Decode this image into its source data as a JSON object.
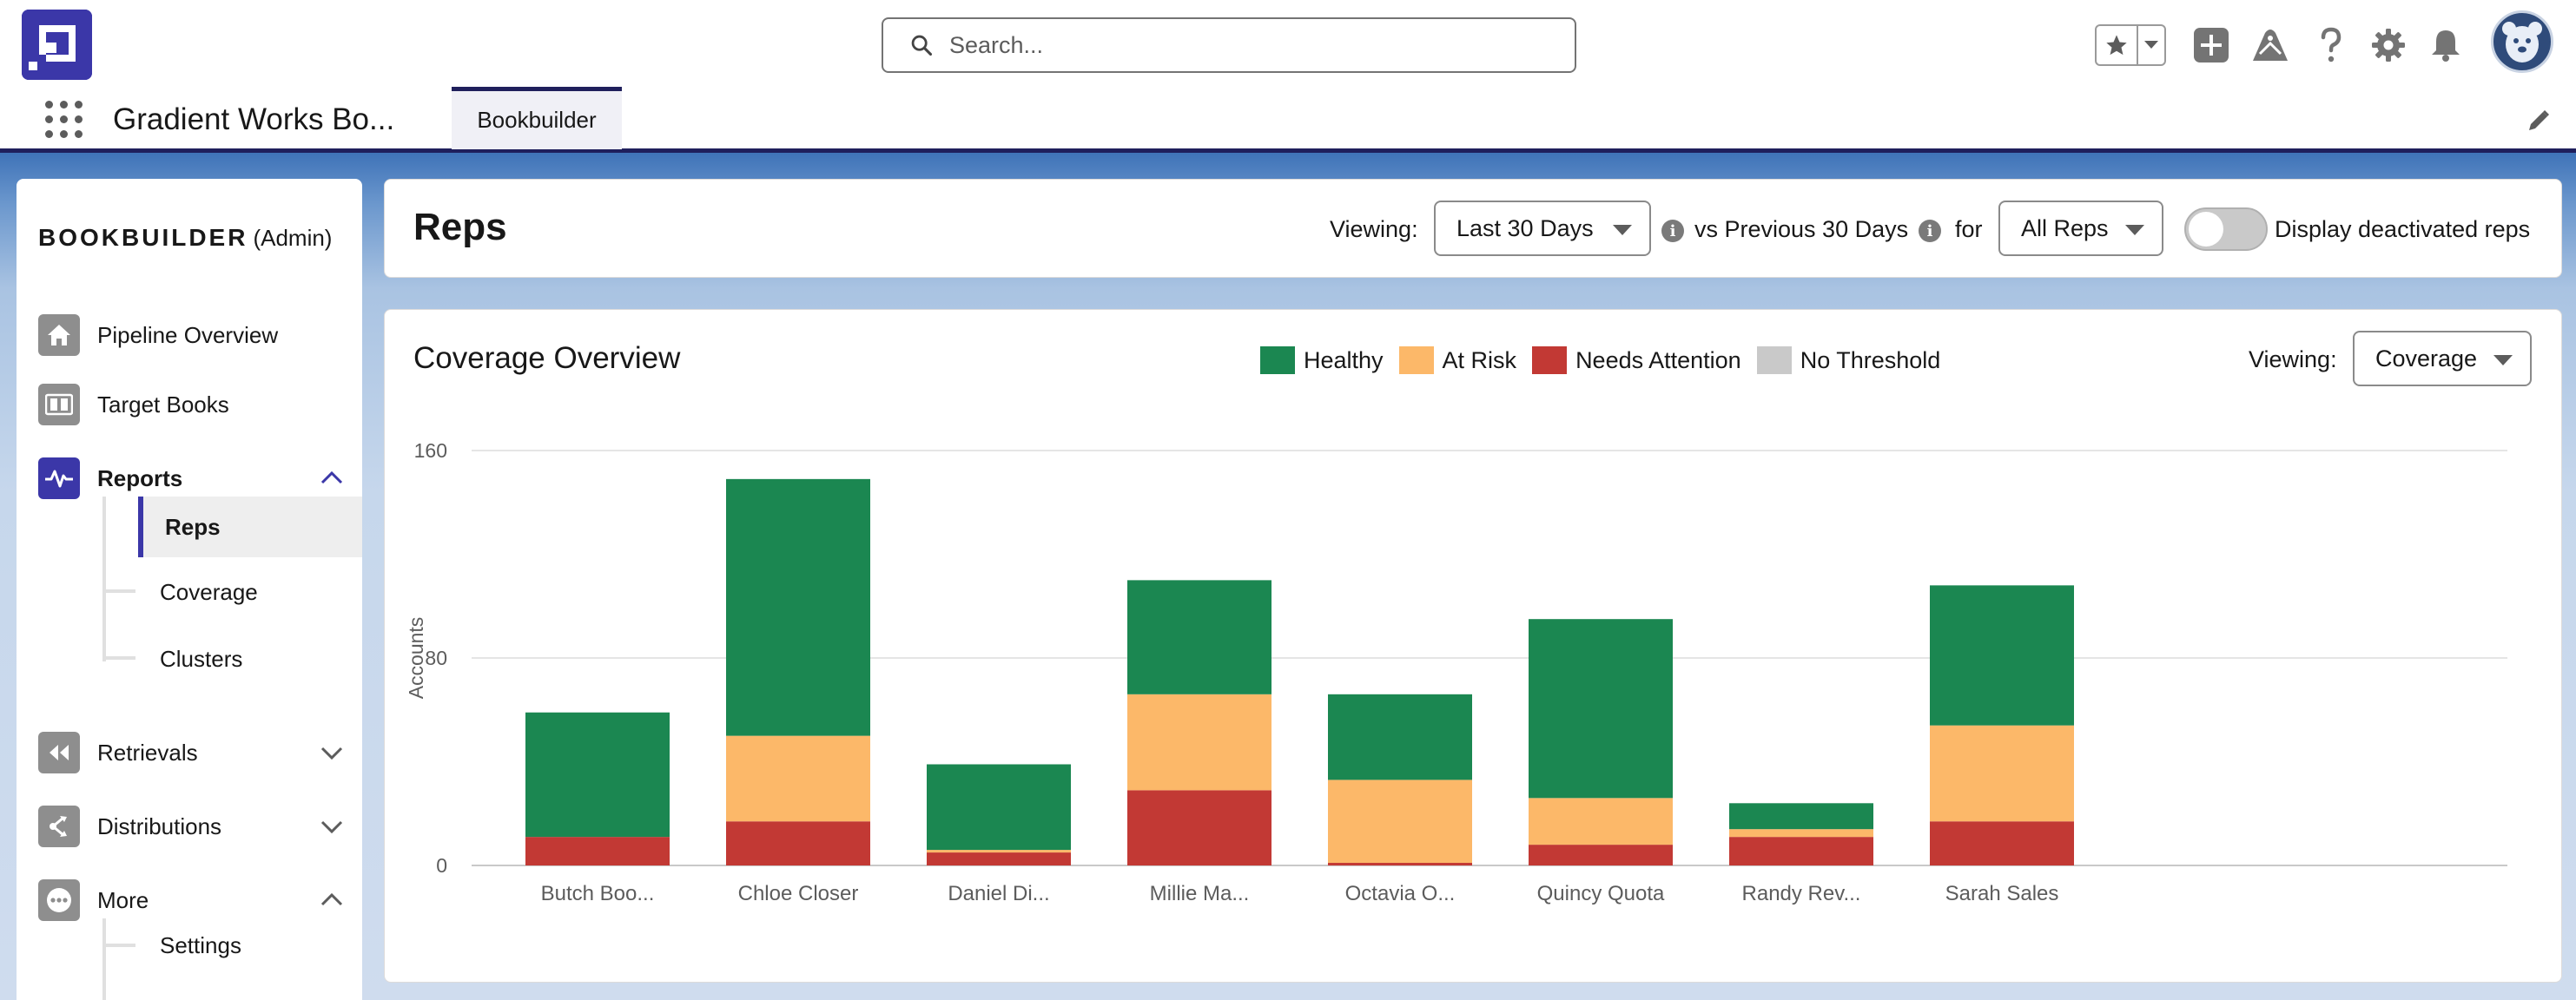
{
  "header": {
    "search_placeholder": "Search...",
    "icons": [
      "favorites-star-icon",
      "add-icon",
      "trailhead-icon",
      "help-icon",
      "setup-gear-icon",
      "notifications-bell-icon"
    ]
  },
  "nav": {
    "app_name": "Gradient Works Bo...",
    "tab_label": "Bookbuilder"
  },
  "sidebar": {
    "heading": "BOOKBUILDER",
    "role": "(Admin)",
    "items": [
      {
        "label": "Pipeline Overview",
        "icon": "home-icon"
      },
      {
        "label": "Target Books",
        "icon": "book-icon"
      },
      {
        "label": "Reports",
        "icon": "pulse-icon",
        "expanded": true
      },
      {
        "label": "Retrievals",
        "icon": "retrieve-icon",
        "expanded": false
      },
      {
        "label": "Distributions",
        "icon": "distribute-icon",
        "expanded": false
      },
      {
        "label": "More",
        "icon": "more-icon",
        "expanded": true
      }
    ],
    "report_subitems": [
      "Reps",
      "Coverage",
      "Clusters"
    ],
    "more_subitems": [
      "Settings"
    ]
  },
  "reps": {
    "title": "Reps",
    "viewing_label": "Viewing:",
    "period": "Last 30 Days",
    "comparison": "vs Previous 30 Days",
    "for_label": "for",
    "rep_filter": "All Reps",
    "toggle_label": "Display deactivated reps",
    "toggle_on": false
  },
  "coverage": {
    "title": "Coverage Overview",
    "viewing_label": "Viewing:",
    "view_mode": "Coverage"
  },
  "colors": {
    "healthy": "#1b8751",
    "at_risk": "#fcb869",
    "needs_attention": "#c23934",
    "no_threshold": "#c9c9c9",
    "brand": "#3b37a8"
  },
  "chart_data": {
    "type": "bar",
    "stacked": true,
    "categories": [
      "Butch Boo...",
      "Chloe Closer",
      "Daniel Di...",
      "Millie Ma...",
      "Octavia O...",
      "Quincy Quota",
      "Randy Rev...",
      "Sarah Sales"
    ],
    "series": [
      {
        "name": "Needs Attention",
        "color": "#c23934",
        "values": [
          11,
          17,
          5,
          29,
          1,
          8,
          11,
          17
        ]
      },
      {
        "name": "At Risk",
        "color": "#fcb869",
        "values": [
          0,
          33,
          1,
          37,
          32,
          18,
          3,
          37
        ]
      },
      {
        "name": "Healthy",
        "color": "#1b8751",
        "values": [
          48,
          99,
          33,
          44,
          33,
          69,
          10,
          54
        ]
      },
      {
        "name": "No Threshold",
        "color": "#c9c9c9",
        "values": [
          0,
          0,
          0,
          0,
          0,
          0,
          0,
          0
        ]
      }
    ],
    "ylabel": "Accounts",
    "xlabel": "",
    "yticks": [
      0,
      80,
      160
    ],
    "ylim": [
      0,
      160
    ],
    "grid": true,
    "legend_position": "top"
  }
}
